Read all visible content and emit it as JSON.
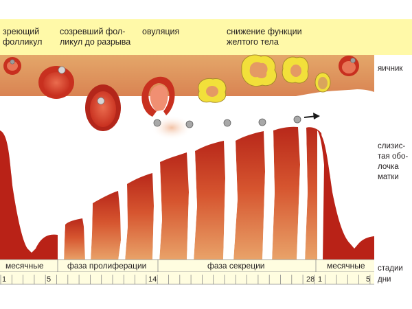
{
  "header": {
    "labels": [
      {
        "line1": "зреющий",
        "line2": "фолликул"
      },
      {
        "line1": "созревший фол-",
        "line2": "ликул до разрыва"
      },
      {
        "line1": "овуляция",
        "line2": ""
      },
      {
        "line1": "снижение функции",
        "line2": "желтого тела"
      }
    ]
  },
  "side_labels": {
    "ovary": "яичник",
    "endometrium": [
      "слизис-",
      "тая обо-",
      "лочка",
      "матки"
    ],
    "stages": "стадии",
    "days": "дни"
  },
  "phases": [
    "месячные",
    "фаза пролиферации",
    "фаза секреции",
    "месячные"
  ],
  "day_ticks": [
    "1",
    "5",
    "14",
    "28",
    "1",
    "5"
  ],
  "colors": {
    "header_bg": "#fff9a8",
    "ovary_bg": "#e2a06a",
    "tissue_red": "#c7261a",
    "tissue_dark": "#8e1710",
    "stripe_bg": "#fffde0",
    "corpus_yellow": "#f2e03a",
    "egg": "#9c9c9c"
  }
}
